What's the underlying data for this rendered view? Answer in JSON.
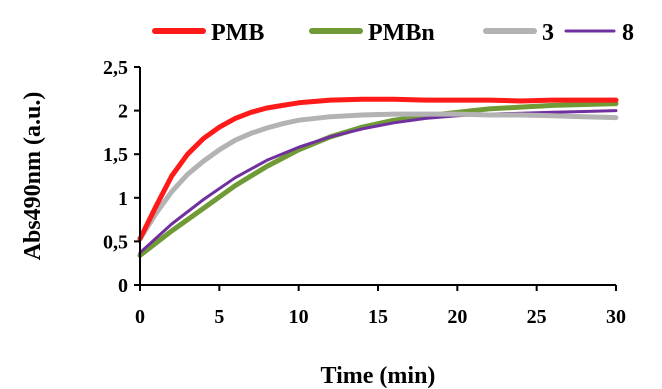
{
  "chart_data": {
    "type": "line",
    "title": "",
    "xlabel": "Time (min)",
    "ylabel": "Abs490nm (a.u.)",
    "xlim": [
      0,
      30
    ],
    "ylim": [
      0,
      2.5
    ],
    "x_ticks": [
      "0",
      "5",
      "10",
      "15",
      "20",
      "25",
      "30"
    ],
    "y_ticks": [
      "0",
      "0,5",
      "1",
      "1,5",
      "2",
      "2,5"
    ],
    "grid": false,
    "legend_position": "top",
    "series": [
      {
        "name": "PMB",
        "color": "#ff1a1a",
        "x": [
          0,
          1,
          2,
          3,
          4,
          5,
          6,
          7,
          8,
          9,
          10,
          12,
          14,
          16,
          18,
          20,
          22,
          24,
          26,
          28,
          30
        ],
        "y": [
          0.53,
          0.9,
          1.25,
          1.5,
          1.68,
          1.81,
          1.91,
          1.98,
          2.03,
          2.06,
          2.09,
          2.12,
          2.13,
          2.13,
          2.12,
          2.12,
          2.12,
          2.11,
          2.12,
          2.12,
          2.12
        ]
      },
      {
        "name": "PMBn",
        "color": "#6f9a35",
        "x": [
          0,
          2,
          4,
          6,
          8,
          10,
          12,
          14,
          16,
          18,
          20,
          22,
          24,
          26,
          28,
          30
        ],
        "y": [
          0.34,
          0.62,
          0.88,
          1.14,
          1.36,
          1.55,
          1.7,
          1.81,
          1.89,
          1.94,
          1.98,
          2.02,
          2.04,
          2.06,
          2.07,
          2.08
        ]
      },
      {
        "name": "3",
        "color": "#b3b3b3",
        "x": [
          0,
          1,
          2,
          3,
          4,
          5,
          6,
          7,
          8,
          9,
          10,
          12,
          14,
          16,
          18,
          20,
          22,
          24,
          26,
          28,
          30
        ],
        "y": [
          0.53,
          0.82,
          1.07,
          1.27,
          1.42,
          1.55,
          1.66,
          1.74,
          1.8,
          1.85,
          1.89,
          1.93,
          1.95,
          1.96,
          1.96,
          1.96,
          1.95,
          1.95,
          1.94,
          1.93,
          1.92
        ]
      },
      {
        "name": "8",
        "color": "#7030a0",
        "x": [
          0,
          2,
          4,
          6,
          8,
          10,
          12,
          14,
          16,
          18,
          20,
          22,
          24,
          26,
          28,
          30
        ],
        "y": [
          0.37,
          0.7,
          0.98,
          1.23,
          1.43,
          1.58,
          1.7,
          1.79,
          1.86,
          1.91,
          1.94,
          1.96,
          1.97,
          1.98,
          1.99,
          2.0
        ]
      }
    ]
  }
}
